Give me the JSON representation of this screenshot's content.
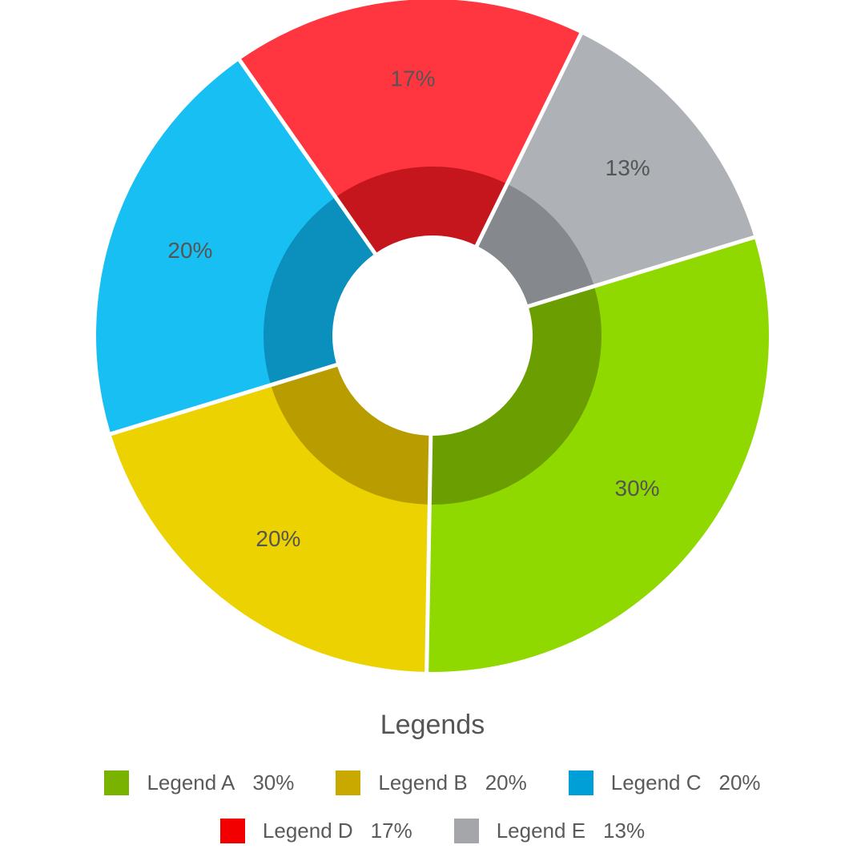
{
  "chart_data": {
    "type": "pie",
    "style": "donut",
    "start_angle_deg": -17,
    "slices": [
      {
        "label": "Legend A",
        "value": 30,
        "value_label": "30%",
        "color": "#8fd800",
        "inner_color": "#6b9e00",
        "legend_color": "#7ab200"
      },
      {
        "label": "Legend B",
        "value": 20,
        "value_label": "20%",
        "color": "#ecd200",
        "inner_color": "#b89c00",
        "legend_color": "#c9a800"
      },
      {
        "label": "Legend C",
        "value": 20,
        "value_label": "20%",
        "color": "#18bff2",
        "inner_color": "#0b8fbd",
        "legend_color": "#009fd8"
      },
      {
        "label": "Legend D",
        "value": 17,
        "value_label": "17%",
        "color": "#ff3640",
        "inner_color": "#c4161c",
        "legend_color": "#f20000"
      },
      {
        "label": "Legend E",
        "value": 13,
        "value_label": "13%",
        "color": "#aeb1b5",
        "inner_color": "#85888d",
        "legend_color": "#a4a6aa"
      }
    ],
    "legend_title": "Legends",
    "legend_placement": "bottom"
  }
}
